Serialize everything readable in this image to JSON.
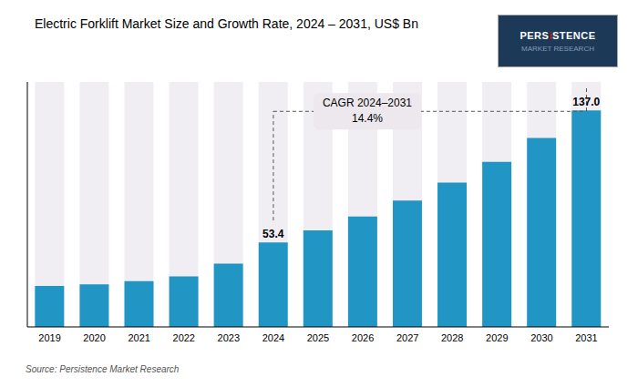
{
  "chart_data": {
    "type": "bar",
    "title": "Electric Forklift Market Size and Growth Rate, 2024 – 2031, US$ Bn",
    "categories": [
      "2019",
      "2020",
      "2021",
      "2022",
      "2023",
      "2024",
      "2025",
      "2026",
      "2027",
      "2028",
      "2029",
      "2030",
      "2031"
    ],
    "values": [
      26.0,
      27.0,
      29.0,
      32.0,
      40.0,
      53.4,
      61.1,
      69.9,
      79.9,
      91.4,
      104.5,
      119.5,
      137.0
    ],
    "value_labels": [
      null,
      null,
      null,
      null,
      null,
      "53.4",
      null,
      null,
      null,
      null,
      null,
      null,
      "137.0"
    ],
    "color": "#2196C4",
    "ylim": [
      0,
      155
    ],
    "tick_labels": "x",
    "grid": false,
    "annotations": [
      "CAGR 2024–2031",
      "14.4%"
    ],
    "source": "Source: Persistence Market Research",
    "logo": [
      "PERSiSTENCE",
      "MARKET RESEARCH"
    ]
  }
}
